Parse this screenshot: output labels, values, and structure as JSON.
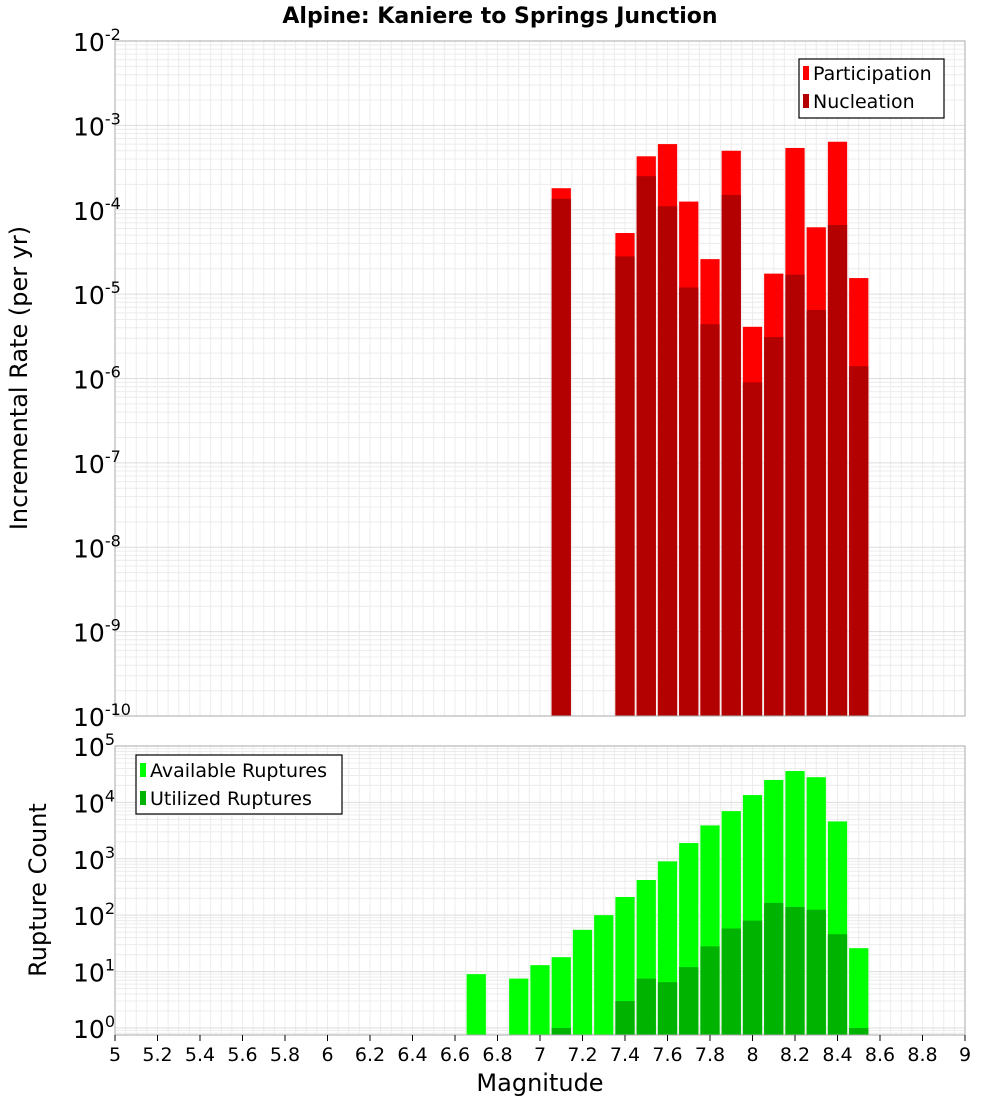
{
  "chart_data": [
    {
      "type": "bar",
      "title": "Alpine: Kaniere to Springs Junction",
      "xlabel": "",
      "ylabel": "Incremental Rate (per yr)",
      "yscale": "log",
      "xlim": [
        5,
        9
      ],
      "ylim": [
        1e-10,
        0.01
      ],
      "y_tick_labels": [
        {
          "base": "10",
          "exp": "-2"
        },
        {
          "base": "10",
          "exp": "-3"
        },
        {
          "base": "10",
          "exp": "-4"
        },
        {
          "base": "10",
          "exp": "-5"
        },
        {
          "base": "10",
          "exp": "-6"
        },
        {
          "base": "10",
          "exp": "-7"
        },
        {
          "base": "10",
          "exp": "-8"
        },
        {
          "base": "10",
          "exp": "-9"
        },
        {
          "base": "10",
          "exp": "-10"
        }
      ],
      "grid": true,
      "legend_position": "top-right",
      "x": [
        7.1,
        7.4,
        7.5,
        7.6,
        7.7,
        7.8,
        7.9,
        8.0,
        8.1,
        8.2,
        8.3,
        8.4,
        8.5
      ],
      "series": [
        {
          "name": "Participation",
          "color": "#ff0000",
          "values": [
            0.00018,
            5.3e-05,
            0.00043,
            0.0006,
            0.000125,
            2.6e-05,
            0.0005,
            4.1e-06,
            1.75e-05,
            0.00054,
            6.2e-05,
            0.00064,
            1.55e-05
          ]
        },
        {
          "name": "Nucleation",
          "color": "#b30000",
          "values": [
            0.000135,
            2.8e-05,
            0.00025,
            0.00011,
            1.2e-05,
            4.4e-06,
            0.00015,
            9e-07,
            3.1e-06,
            1.7e-05,
            6.5e-06,
            6.6e-05,
            1.4e-06
          ]
        }
      ]
    },
    {
      "type": "bar",
      "title": "",
      "xlabel": "Magnitude",
      "ylabel": "Rupture Count",
      "yscale": "log",
      "xlim": [
        5,
        9
      ],
      "ylim": [
        0.75,
        100000.0
      ],
      "y_tick_labels": [
        {
          "base": "10",
          "exp": "5"
        },
        {
          "base": "10",
          "exp": "4"
        },
        {
          "base": "10",
          "exp": "3"
        },
        {
          "base": "10",
          "exp": "2"
        },
        {
          "base": "10",
          "exp": "1"
        },
        {
          "base": "10",
          "exp": "0"
        }
      ],
      "x_tick_labels": [
        "5",
        "5.2",
        "5.4",
        "5.6",
        "5.8",
        "6",
        "6.2",
        "6.4",
        "6.6",
        "6.8",
        "7",
        "7.2",
        "7.4",
        "7.6",
        "7.8",
        "8",
        "8.2",
        "8.4",
        "8.6",
        "8.8",
        "9"
      ],
      "grid": true,
      "legend_position": "top-left",
      "x": [
        6.7,
        6.9,
        7.0,
        7.1,
        7.2,
        7.3,
        7.4,
        7.5,
        7.6,
        7.7,
        7.8,
        7.9,
        8.0,
        8.1,
        8.2,
        8.3,
        8.4,
        8.5
      ],
      "series": [
        {
          "name": "Available Ruptures",
          "color": "#00ff00",
          "values": [
            9,
            7.5,
            13,
            18,
            55,
            100,
            210,
            420,
            900,
            1900,
            3900,
            7000,
            13500,
            25000,
            36000,
            28000,
            4600,
            26
          ]
        },
        {
          "name": "Utilized Ruptures",
          "color": "#00b300",
          "values": [
            null,
            null,
            null,
            1,
            null,
            null,
            3,
            7.5,
            6.5,
            12,
            28,
            58,
            80,
            165,
            140,
            125,
            46,
            1
          ]
        }
      ]
    }
  ]
}
